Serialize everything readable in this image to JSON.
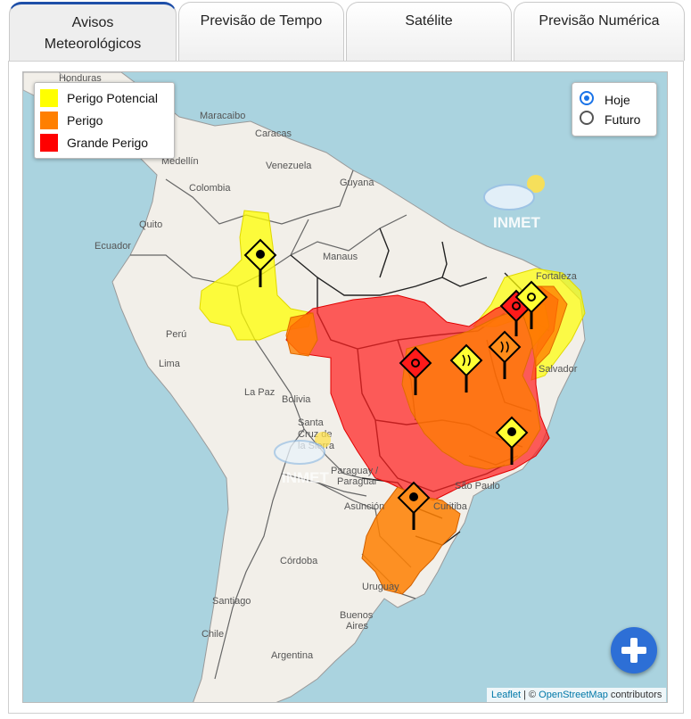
{
  "tabs": [
    {
      "label_line1": "Avisos",
      "label_line2": "Meteorológicos",
      "active": true
    },
    {
      "label": "Previsão de Tempo"
    },
    {
      "label": "Satélite"
    },
    {
      "label": "Previsão Numérica"
    }
  ],
  "legend": {
    "items": [
      {
        "label": "Perigo Potencial",
        "color": "#ffff00"
      },
      {
        "label": "Perigo",
        "color": "#ff7f00"
      },
      {
        "label": "Grande Perigo",
        "color": "#ff0000"
      }
    ]
  },
  "period": {
    "options": [
      {
        "label": "Hoje",
        "selected": true
      },
      {
        "label": "Futuro",
        "selected": false
      }
    ]
  },
  "map": {
    "places": {
      "honduras": "Honduras",
      "maracaibo": "Maracaibo",
      "caracas": "Caracas",
      "medellin": "Medellín",
      "venezuela": "Venezuela",
      "guyana": "Guyana",
      "colombia": "Colombia",
      "quito": "Quito",
      "ecuador": "Ecuador",
      "manaus": "Manaus",
      "fortaleza": "Fortaleza",
      "peru": "Perú",
      "lima": "Lima",
      "la_paz": "La Paz",
      "bolivia": "Bolivia",
      "santa": "Santa",
      "cruz": "Cruz de",
      "la_sierra": "la Sierra",
      "salvador": "Salvador",
      "paraguay": "Paraguay / ",
      "paraguai": "Paraguai",
      "sao_paulo": "São Paulo",
      "asuncion": "Asunción",
      "curitiba": "Curitiba",
      "cordoba": "Córdoba",
      "uruguay": "Uruguay",
      "santiago": "Santiago",
      "buenos": "Buenos",
      "aires": "Aires",
      "chile": "Chile",
      "argentina": "Argentina"
    },
    "watermark": "INMET",
    "watermark2": "INMET"
  },
  "attribution": {
    "leaflet": "Leaflet",
    "sep": " | © ",
    "osm": "OpenStreetMap",
    "rest": " contributors"
  }
}
